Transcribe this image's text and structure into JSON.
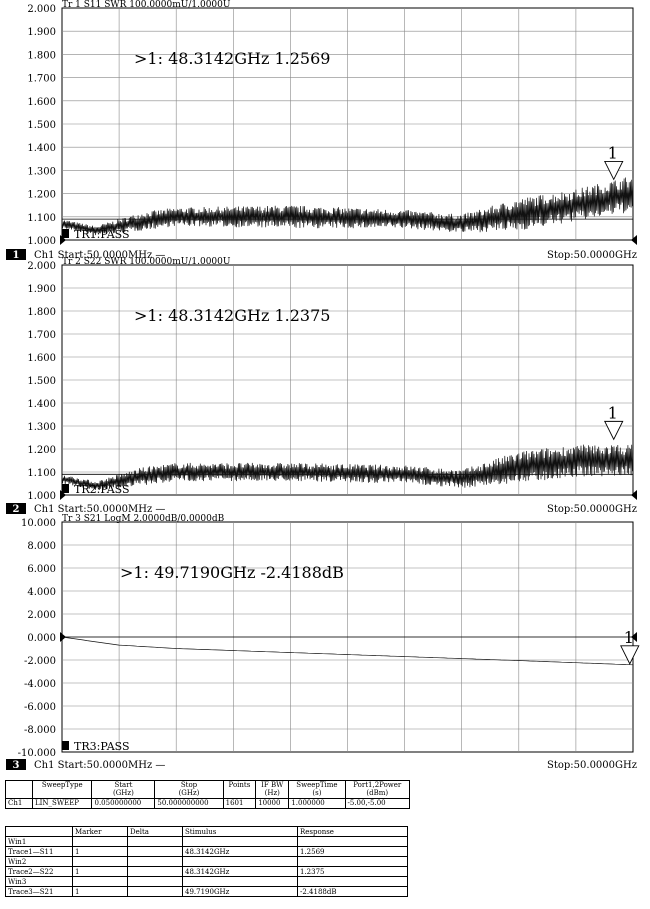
{
  "chart_data": [
    {
      "type": "line",
      "header": "Tr 1  S11 SWR 100.0000mU/1.0000U",
      "marker_readout": ">1:   48.3142GHz  1.2569",
      "marker_label": "1",
      "marker": {
        "x_ghz": 48.3142,
        "y": 1.2569
      },
      "pass_label": "TR1:PASS",
      "ylim": [
        1.0,
        2.0
      ],
      "yticks": [
        "2.000",
        "1.900",
        "1.800",
        "1.700",
        "1.600",
        "1.500",
        "1.400",
        "1.300",
        "1.200",
        "1.100",
        "1.000"
      ],
      "reference_line": 1.09,
      "trace": {
        "x": [
          0.05,
          3,
          7,
          10,
          20,
          30,
          35,
          40,
          45,
          50
        ],
        "y": [
          1.07,
          1.04,
          1.08,
          1.1,
          1.1,
          1.09,
          1.07,
          1.11,
          1.15,
          1.2
        ],
        "ripple": [
          0.02,
          0.02,
          0.04,
          0.04,
          0.05,
          0.04,
          0.04,
          0.07,
          0.07,
          0.08
        ]
      },
      "footer": {
        "channel": "1",
        "start": "Ch1  Start:50.0000MHz —",
        "stop": "Stop:50.0000GHz"
      }
    },
    {
      "type": "line",
      "header": "Tr 2  S22 SWR 100.0000mU/1.0000U",
      "marker_readout": ">1:   48.3142GHz  1.2375",
      "marker_label": "1",
      "marker": {
        "x_ghz": 48.3142,
        "y": 1.2375
      },
      "pass_label": "TR2:PASS",
      "ylim": [
        1.0,
        2.0
      ],
      "yticks": [
        "2.000",
        "1.900",
        "1.800",
        "1.700",
        "1.600",
        "1.500",
        "1.400",
        "1.300",
        "1.200",
        "1.100",
        "1.000"
      ],
      "reference_line": 1.09,
      "trace": {
        "x": [
          0.05,
          3,
          7,
          10,
          20,
          30,
          35,
          40,
          45,
          50
        ],
        "y": [
          1.07,
          1.04,
          1.08,
          1.1,
          1.1,
          1.09,
          1.07,
          1.12,
          1.15,
          1.15
        ],
        "ripple": [
          0.02,
          0.02,
          0.04,
          0.04,
          0.04,
          0.04,
          0.04,
          0.07,
          0.07,
          0.07
        ]
      },
      "footer": {
        "channel": "2",
        "start": "Ch1  Start:50.0000MHz —",
        "stop": "Stop:50.0000GHz"
      }
    },
    {
      "type": "line",
      "header": "Tr 3  S21 LogM 2.0000dB/0.0000dB",
      "marker_readout": ">1:   49.7190GHz  -2.4188dB",
      "marker_label": "1",
      "marker": {
        "x_ghz": 49.719,
        "y": -2.4188
      },
      "pass_label": "TR3:PASS",
      "ylim": [
        -10.0,
        10.0
      ],
      "yticks": [
        "10.000",
        "8.000",
        "6.000",
        "4.000",
        "2.000",
        "0.000",
        "-2.000",
        "-4.000",
        "-6.000",
        "-8.000",
        "-10.000"
      ],
      "reference_line": 0,
      "trace": {
        "x": [
          0.05,
          5,
          10,
          20,
          30,
          40,
          50
        ],
        "y": [
          0.0,
          -0.7,
          -1.0,
          -1.35,
          -1.7,
          -2.05,
          -2.42
        ],
        "ripple": [
          0,
          0,
          0,
          0,
          0,
          0,
          0
        ]
      },
      "footer": {
        "channel": "3",
        "start": "Ch1  Start:50.0000MHz —",
        "stop": "Stop:50.0000GHz"
      }
    }
  ],
  "sweep_table": {
    "headers": [
      "",
      "SweepType",
      "Start\n(GHz)",
      "Stop\n(GHz)",
      "Points",
      "IF BW\n(Hz)",
      "SweepTime\n(s)",
      "Port1,2Power\n(dBm)"
    ],
    "row": [
      "Ch1",
      "LIN_SWEEP",
      "0.050000000",
      "50.000000000",
      "1601",
      "10000",
      "1.000000",
      "-5.00,-5.00"
    ]
  },
  "marker_table": {
    "headers": [
      "",
      "Marker",
      "Delta",
      "Stimulus",
      "Response"
    ],
    "rows": [
      [
        "Win1",
        "",
        "",
        "",
        ""
      ],
      [
        "Trace1—S11",
        "1",
        "",
        "48.3142GHz",
        "1.2569"
      ],
      [
        "Win2",
        "",
        "",
        "",
        ""
      ],
      [
        "Trace2—S22",
        "1",
        "",
        "48.3142GHz",
        "1.2375"
      ],
      [
        "Win3",
        "",
        "",
        "",
        ""
      ],
      [
        "Trace3—S21",
        "1",
        "",
        "49.7190GHz",
        "-2.4188dB"
      ]
    ]
  }
}
